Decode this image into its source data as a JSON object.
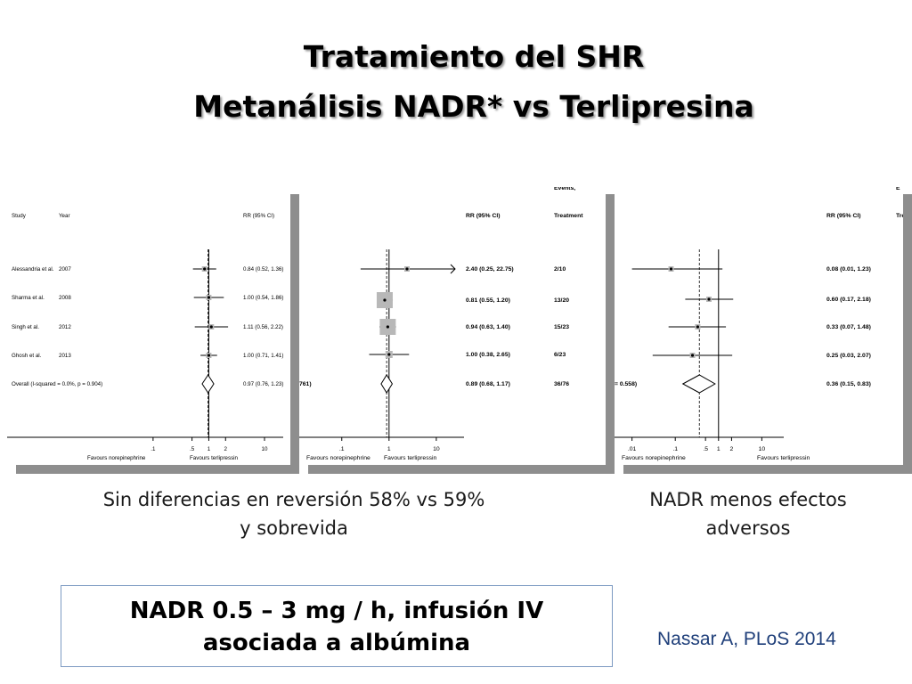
{
  "slide": {
    "title_line1": "Tratamiento del SHR",
    "title_line2": "Metanálisis NADR* vs Terlipresina",
    "caption_left_line1": "Sin diferencias en reversión 58% vs 59%",
    "caption_left_line2": "y sobrevida",
    "caption_right_line1": "NADR menos efectos",
    "caption_right_line2": "adversos",
    "highlight_line1": "NADR 0.5 – 3 mg / h, infusión IV",
    "highlight_line2": "asociada a albúmina",
    "citation": "Nassar A, PLoS 2014",
    "colors": {
      "citation": "#1f3f7a",
      "highlight_border": "#7c9ac2",
      "panel_shadow": "#8e8e8e"
    }
  },
  "chart_data": [
    {
      "type": "forest",
      "headers": {
        "study": "Study",
        "year": "Year",
        "rr": "RR (95% CI)"
      },
      "ticks": [
        {
          "value": 0.1,
          "label": ".1"
        },
        {
          "value": 0.5,
          "label": ".5"
        },
        {
          "value": 1,
          "label": "1"
        },
        {
          "value": 2,
          "label": "2"
        },
        {
          "value": 10,
          "label": "10"
        }
      ],
      "xlabel_left": "Favours norepinephrine",
      "xlabel_right": "Favours terlipressin",
      "xlim": [
        0.06,
        15
      ],
      "log_scale": true,
      "dashed_ref": 0.97,
      "rows": [
        {
          "study": "Alessandria et al.",
          "year": "2007",
          "rr": 0.84,
          "lo": 0.52,
          "hi": 1.36,
          "label": "0.84 (0.52, 1.36)"
        },
        {
          "study": "Sharma et al.",
          "year": "2008",
          "rr": 1.0,
          "lo": 0.54,
          "hi": 1.86,
          "label": "1.00 (0.54, 1.86)"
        },
        {
          "study": "Singh et al.",
          "year": "2012",
          "rr": 1.11,
          "lo": 0.56,
          "hi": 2.22,
          "label": "1.11 (0.56, 2.22)"
        },
        {
          "study": "Ghosh et al.",
          "year": "2013",
          "rr": 1.0,
          "lo": 0.71,
          "hi": 1.41,
          "label": "1.00 (0.71, 1.41)"
        }
      ],
      "overall": {
        "study": "Overall  (I-squared = 0.0%, p = 0.904)",
        "rr": 0.97,
        "lo": 0.76,
        "hi": 1.23,
        "label": "0.97 (0.76, 1.23)"
      }
    },
    {
      "type": "forest",
      "headers": {
        "events_top": "Events,",
        "rr": "RR (95% CI)",
        "treatment": "Treatment"
      },
      "ticks": [
        {
          "value": 0.1,
          "label": ".1"
        },
        {
          "value": 1,
          "label": "1"
        },
        {
          "value": 10,
          "label": "10"
        }
      ],
      "xlabel_left": "Favours norepinephrine",
      "xlabel_right": "Favours terlipressin",
      "xlim": [
        0.03,
        25
      ],
      "log_scale": true,
      "dashed_ref": 0.89,
      "rows": [
        {
          "rr": 2.4,
          "lo": 0.25,
          "hi": 22.75,
          "label": "2.40 (0.25, 22.75)",
          "events": "2/10",
          "arrow_right": true
        },
        {
          "rr": 0.81,
          "lo": 0.55,
          "hi": 1.2,
          "label": "0.81 (0.55, 1.20)",
          "events": "13/20"
        },
        {
          "rr": 0.94,
          "lo": 0.63,
          "hi": 1.4,
          "label": "0.94 (0.63, 1.40)",
          "events": "15/23"
        },
        {
          "rr": 1.0,
          "lo": 0.38,
          "hi": 2.65,
          "label": "1.00 (0.38, 2.65)",
          "events": "6/23"
        }
      ],
      "overall": {
        "study_fragment": "761)",
        "rr": 0.89,
        "lo": 0.68,
        "hi": 1.17,
        "label": "0.89 (0.68, 1.17)",
        "events": "36/76"
      }
    },
    {
      "type": "forest",
      "headers": {
        "events_top": "E",
        "rr": "RR (95% CI)",
        "treatment": "Tre"
      },
      "ticks": [
        {
          "value": 0.01,
          "label": ".01"
        },
        {
          "value": 0.1,
          "label": ".1"
        },
        {
          "value": 0.5,
          "label": ".5"
        },
        {
          "value": 1,
          "label": "1"
        },
        {
          "value": 2,
          "label": "2"
        },
        {
          "value": 10,
          "label": "10"
        }
      ],
      "xlabel_left": "Favours norepinephrine",
      "xlabel_right": "Favours terlipressin",
      "xlim": [
        0.005,
        20
      ],
      "log_scale": true,
      "dashed_ref": 0.36,
      "rows": [
        {
          "rr": 0.08,
          "lo": 0.01,
          "hi": 1.23,
          "label": "0.08 (0.01, 1.23)"
        },
        {
          "rr": 0.6,
          "lo": 0.17,
          "hi": 2.18,
          "label": "0.60 (0.17, 2.18)"
        },
        {
          "rr": 0.33,
          "lo": 0.07,
          "hi": 1.48,
          "label": "0.33 (0.07, 1.48)"
        },
        {
          "rr": 0.25,
          "lo": 0.03,
          "hi": 2.07,
          "label": "0.25 (0.03, 2.07)"
        }
      ],
      "overall": {
        "study_fragment": "= 0.558)",
        "rr": 0.36,
        "lo": 0.15,
        "hi": 0.83,
        "label": "0.36 (0.15, 0.83)"
      }
    }
  ]
}
